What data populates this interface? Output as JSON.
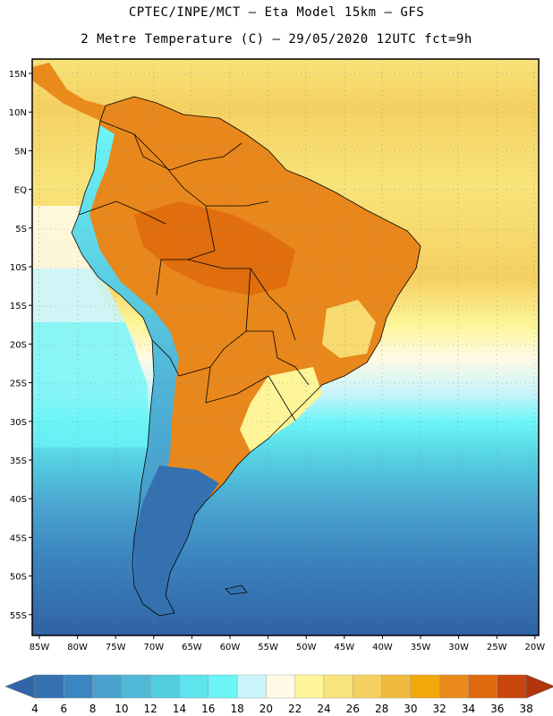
{
  "header": {
    "line1": "CPTEC/INPE/MCT –  Eta Model 15km – GFS",
    "line2": "2 Metre Temperature (C) – 29/05/2020 12UTC fct=9h"
  },
  "map": {
    "lat_labels": [
      "15N",
      "10N",
      "5N",
      "EQ",
      "5S",
      "10S",
      "15S",
      "20S",
      "25S",
      "30S",
      "35S",
      "40S",
      "45S",
      "50S",
      "55S"
    ],
    "lon_labels": [
      "85W",
      "80W",
      "75W",
      "70W",
      "65W",
      "60W",
      "55W",
      "50W",
      "45W",
      "40W",
      "35W",
      "30W",
      "25W",
      "20W"
    ]
  },
  "colorbar": {
    "values": [
      "4",
      "6",
      "8",
      "10",
      "12",
      "14",
      "16",
      "18",
      "20",
      "22",
      "24",
      "26",
      "28",
      "30",
      "32",
      "34",
      "36",
      "38"
    ],
    "colors": [
      "#3571b0",
      "#3b86c0",
      "#4aa3cf",
      "#52b8d8",
      "#53cde0",
      "#5fe3ec",
      "#6bf5f7",
      "#c8f4fa",
      "#fefae6",
      "#fdf598",
      "#f8e47a",
      "#f5d062",
      "#efbb3e",
      "#f2a90c",
      "#ea8b1c",
      "#df6a0d",
      "#c9450e",
      "#b8340c"
    ],
    "left_arrow_color": "#3066a8",
    "right_arrow_color": "#b0340c"
  },
  "palette": {
    "ocean_south": "#2f62a5",
    "ocean_mid": "#4aa3cf",
    "land_hot": "#e8871b"
  }
}
